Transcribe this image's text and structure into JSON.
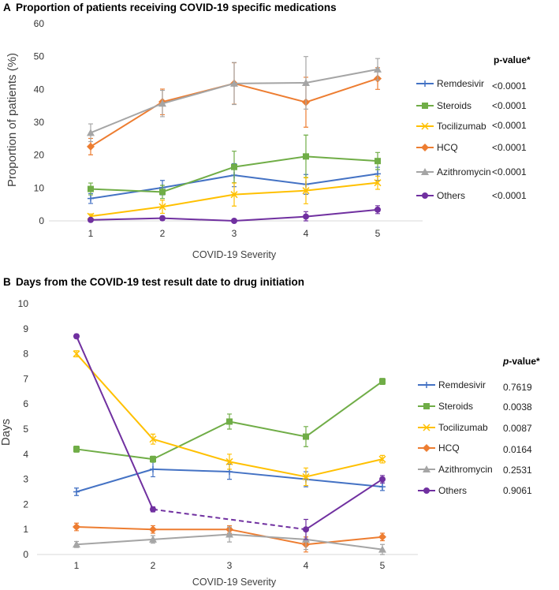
{
  "chart_data": [
    {
      "type": "line",
      "panel_letter": "A",
      "title": "Proportion of patients receiving COVID-19 specific medications",
      "xlabel": "COVID-19 Severity",
      "ylabel": "Proportion of patients (%)",
      "x": [
        1,
        2,
        3,
        4,
        5
      ],
      "x_tick_labels": [
        "1",
        "2",
        "3",
        "4",
        "5"
      ],
      "ylim": [
        0,
        60
      ],
      "y_ticks": [
        0,
        10,
        20,
        30,
        40,
        50,
        60
      ],
      "grid": false,
      "legend_header": "p-value*",
      "series": [
        {
          "name": "Remdesivir",
          "color": "#4472C4",
          "marker": "plus",
          "values": [
            6.8,
            10.1,
            13.9,
            11.1,
            14.3
          ],
          "err": [
            1.5,
            2.2,
            3.5,
            3.0,
            2.0
          ],
          "p_value": "<0.0001"
        },
        {
          "name": "Steroids",
          "color": "#70AD47",
          "marker": "square",
          "values": [
            9.7,
            8.8,
            16.4,
            19.6,
            18.2
          ],
          "err": [
            1.8,
            2.0,
            4.8,
            6.5,
            2.6
          ],
          "p_value": "<0.0001"
        },
        {
          "name": "Tocilizumab",
          "color": "#FFC000",
          "marker": "x",
          "values": [
            1.4,
            4.3,
            8.0,
            9.2,
            11.6
          ],
          "err": [
            0.7,
            2.0,
            3.5,
            4.0,
            2.0
          ],
          "p_value": "<0.0001"
        },
        {
          "name": "HCQ",
          "color": "#ED7D31",
          "marker": "diamond",
          "values": [
            22.6,
            36.2,
            41.8,
            36.1,
            43.3
          ],
          "err": [
            2.5,
            3.9,
            6.3,
            7.6,
            3.3
          ],
          "p_value": "<0.0001"
        },
        {
          "name": "Azithromycin",
          "color": "#A5A5A5",
          "marker": "triangle",
          "values": [
            26.8,
            35.7,
            41.8,
            42.0,
            46.1
          ],
          "err": [
            2.7,
            4.0,
            6.4,
            8.0,
            3.3
          ],
          "p_value": "<0.0001"
        },
        {
          "name": "Others",
          "color": "#7030A0",
          "marker": "circle",
          "values": [
            0.3,
            0.8,
            0.0,
            1.3,
            3.4
          ],
          "err": [
            0.3,
            0.6,
            0.2,
            1.5,
            1.2
          ],
          "p_value": "<0.0001"
        }
      ]
    },
    {
      "type": "line",
      "panel_letter": "B",
      "title": "Days from the COVID-19 test result date to drug initiation",
      "xlabel": "COVID-19 Severity",
      "ylabel": "Days",
      "x": [
        1,
        2,
        3,
        4,
        5
      ],
      "x_tick_labels": [
        "1",
        "2",
        "3",
        "4",
        "5"
      ],
      "ylim": [
        0,
        10
      ],
      "y_ticks": [
        0,
        1,
        2,
        3,
        4,
        5,
        6,
        7,
        8,
        9,
        10
      ],
      "grid": false,
      "legend_header_italic": "p",
      "legend_header_rest": "-value*",
      "series": [
        {
          "name": "Remdesivir",
          "color": "#4472C4",
          "marker": "plus",
          "values": [
            2.5,
            3.4,
            3.3,
            3.0,
            2.7
          ],
          "err": [
            0.15,
            0.3,
            0.3,
            0.3,
            0.15
          ],
          "p_value": "0.7619"
        },
        {
          "name": "Steroids",
          "color": "#70AD47",
          "marker": "square",
          "values": [
            4.2,
            3.8,
            5.3,
            4.7,
            6.9
          ],
          "err": [
            0.12,
            0.12,
            0.3,
            0.4,
            0.12
          ],
          "p_value": "0.0038"
        },
        {
          "name": "Tocilizumab",
          "color": "#FFC000",
          "marker": "x",
          "values": [
            8.0,
            4.6,
            3.7,
            3.1,
            3.8
          ],
          "err": [
            0.12,
            0.2,
            0.3,
            0.35,
            0.15
          ],
          "p_value": "0.0087"
        },
        {
          "name": "HCQ",
          "color": "#ED7D31",
          "marker": "diamond",
          "values": [
            1.1,
            1.0,
            1.0,
            0.4,
            0.7
          ],
          "err": [
            0.15,
            0.15,
            0.15,
            0.3,
            0.15
          ],
          "p_value": "0.0164"
        },
        {
          "name": "Azithromycin",
          "color": "#A5A5A5",
          "marker": "triangle",
          "values": [
            0.4,
            0.6,
            0.8,
            0.6,
            0.2
          ],
          "err": [
            0.12,
            0.15,
            0.3,
            0.4,
            0.2
          ],
          "p_value": "0.2531"
        },
        {
          "name": "Others",
          "color": "#7030A0",
          "marker": "circle",
          "values": [
            8.7,
            1.8,
            null,
            1.0,
            3.0
          ],
          "err": [
            0.08,
            0.1,
            null,
            0.4,
            0.15
          ],
          "p_value": "0.9061",
          "dashed_gap_from": 2,
          "dashed_gap_to": 4
        }
      ]
    }
  ]
}
